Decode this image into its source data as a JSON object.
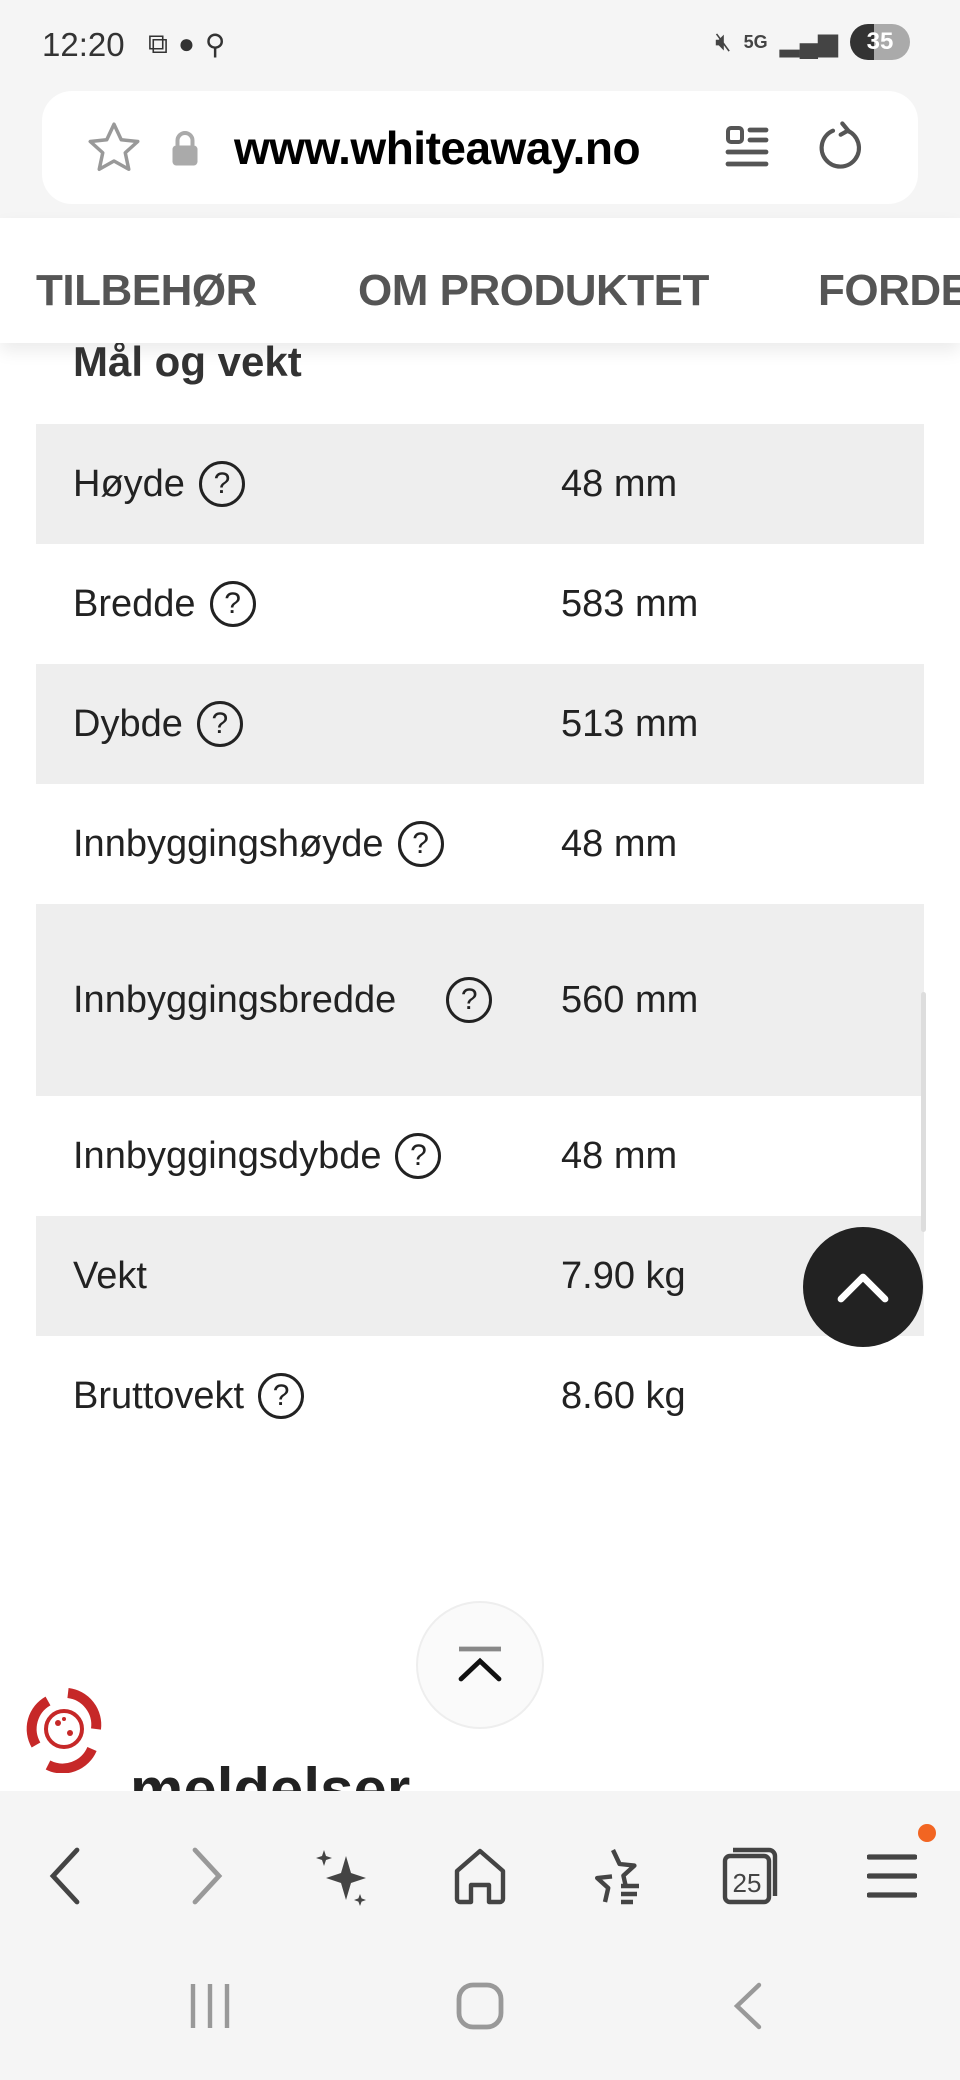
{
  "status_bar": {
    "time": "12:20",
    "network": "5G",
    "battery": "35"
  },
  "browser": {
    "url": "www.whiteaway.no",
    "tabs_count": "25",
    "notification_color": "#f26522"
  },
  "tabs": [
    {
      "label": "TILBEHØR"
    },
    {
      "label": "OM PRODUKTET"
    },
    {
      "label": "FORDELER"
    }
  ],
  "section": {
    "title": "Mål og vekt",
    "rows": [
      {
        "label": "Høyde",
        "value": "48 mm",
        "help": true
      },
      {
        "label": "Bredde",
        "value": "583 mm",
        "help": true
      },
      {
        "label": "Dybde",
        "value": "513 mm",
        "help": true
      },
      {
        "label": "Innbyggingshøyde",
        "value": "48 mm",
        "help": true
      },
      {
        "label": "Innbyggingsbredde",
        "value": "560 mm",
        "help": true
      },
      {
        "label": "Innbyggingsdybde",
        "value": "48 mm",
        "help": true
      },
      {
        "label": "Vekt",
        "value": "7.90 kg",
        "help": false
      },
      {
        "label": "Bruttovekt",
        "value": "8.60 kg",
        "help": true
      }
    ]
  },
  "next_section_partial": "meldelser",
  "logo_color": "#c62828"
}
